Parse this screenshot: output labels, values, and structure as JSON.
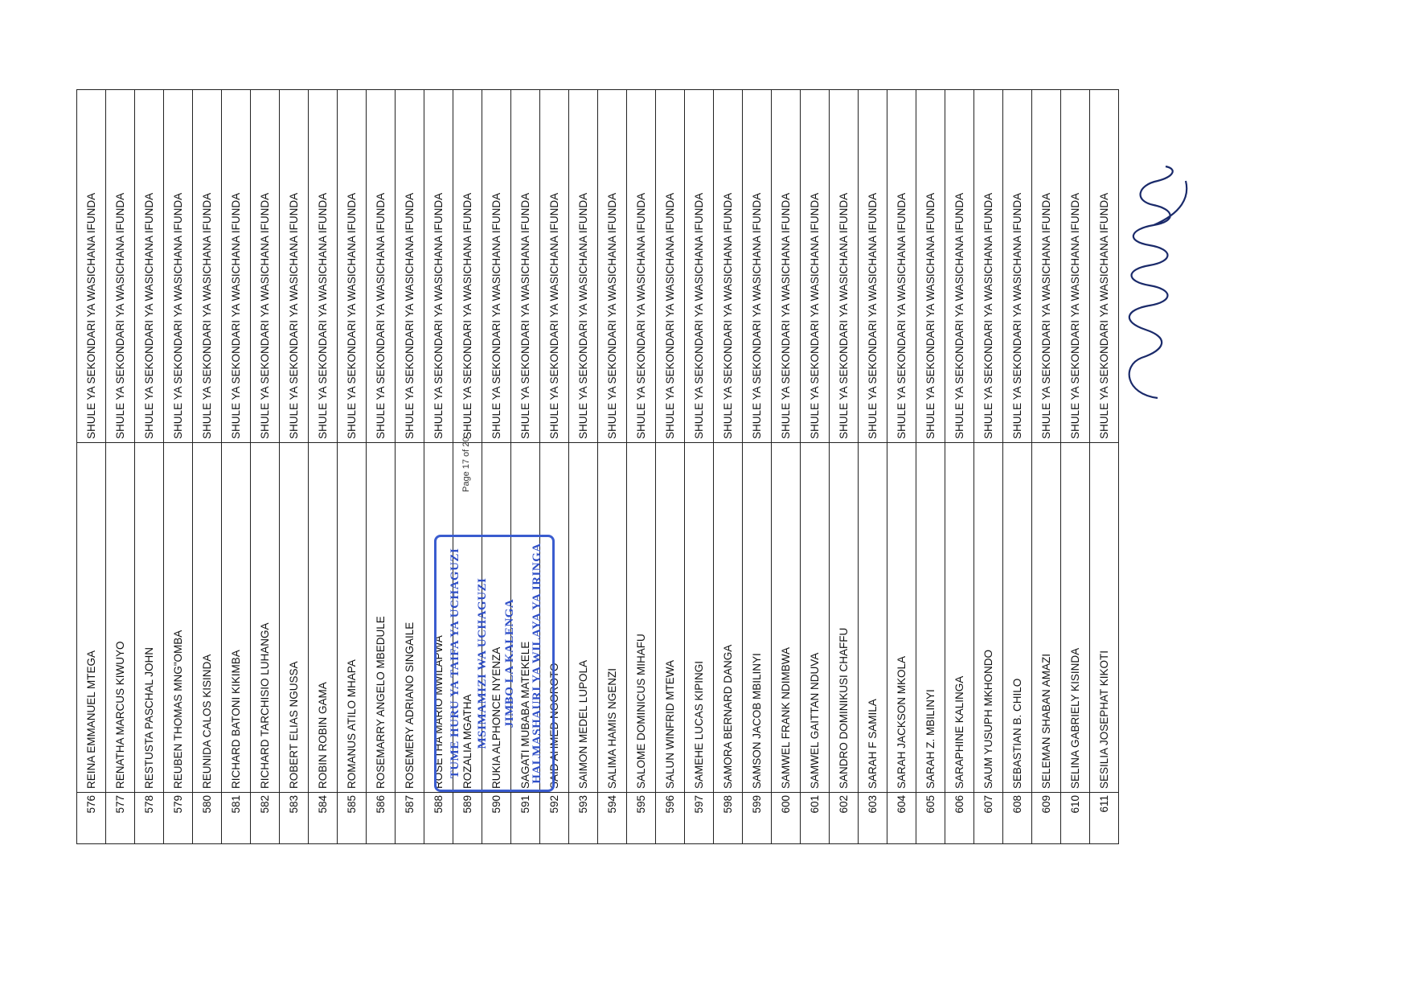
{
  "rows": [
    {
      "no": "576",
      "name": "REINA EMMANUEL MTEGA",
      "school": "SHULE YA SEKONDARI YA WASICHANA IFUNDA"
    },
    {
      "no": "577",
      "name": "RENATHA MARCUS KIWUYO",
      "school": "SHULE YA SEKONDARI YA WASICHANA IFUNDA"
    },
    {
      "no": "578",
      "name": "RESTUSTA PASCHAL JOHN",
      "school": "SHULE YA SEKONDARI YA WASICHANA IFUNDA"
    },
    {
      "no": "579",
      "name": "REUBEN THOMAS MNG\"OMBA",
      "school": "SHULE YA SEKONDARI YA WASICHANA IFUNDA"
    },
    {
      "no": "580",
      "name": "REUNIDA CALOS KISINDA",
      "school": "SHULE YA SEKONDARI YA WASICHANA IFUNDA"
    },
    {
      "no": "581",
      "name": "RICHARD BATONI KIKIMBA",
      "school": "SHULE YA SEKONDARI YA WASICHANA IFUNDA"
    },
    {
      "no": "582",
      "name": "RICHARD TARCHISIO LUHANGA",
      "school": "SHULE YA SEKONDARI YA WASICHANA IFUNDA"
    },
    {
      "no": "583",
      "name": "ROBERT ELIAS NGUSSA",
      "school": "SHULE YA SEKONDARI YA WASICHANA IFUNDA"
    },
    {
      "no": "584",
      "name": "ROBIN ROBIN GAMA",
      "school": "SHULE YA SEKONDARI YA WASICHANA IFUNDA"
    },
    {
      "no": "585",
      "name": "ROMANUS ATILO MHAPA",
      "school": "SHULE YA SEKONDARI YA WASICHANA IFUNDA"
    },
    {
      "no": "586",
      "name": "ROSEMARRY ANGELO MBEDULE",
      "school": "SHULE YA SEKONDARI YA WASICHANA IFUNDA"
    },
    {
      "no": "587",
      "name": "ROSEMERY ADRIANO SINGAILE",
      "school": "SHULE YA SEKONDARI YA WASICHANA IFUNDA"
    },
    {
      "no": "588",
      "name": "ROSETHA MARIO MWILAPWA",
      "school": "SHULE YA SEKONDARI YA WASICHANA IFUNDA"
    },
    {
      "no": "589",
      "name": "ROZALIA MGATHA",
      "school": "SHULE YA SEKONDARI YA WASICHANA IFUNDA"
    },
    {
      "no": "590",
      "name": "RUKIA ALPHONCE NYENZA",
      "school": "SHULE YA SEKONDARI YA WASICHANA IFUNDA"
    },
    {
      "no": "591",
      "name": "SAGATI MUBABA MATEKELE",
      "school": "SHULE YA SEKONDARI YA WASICHANA IFUNDA"
    },
    {
      "no": "592",
      "name": "SAID AHMED NGOROTO",
      "school": "SHULE YA SEKONDARI YA WASICHANA IFUNDA"
    },
    {
      "no": "593",
      "name": "SAIMON MEDEL LUPOLA",
      "school": "SHULE YA SEKONDARI YA WASICHANA IFUNDA"
    },
    {
      "no": "594",
      "name": "SALIMA HAMIS NGENZI",
      "school": "SHULE YA SEKONDARI YA WASICHANA IFUNDA"
    },
    {
      "no": "595",
      "name": "SALOME DOMINICUS MIHAFU",
      "school": "SHULE YA SEKONDARI YA WASICHANA IFUNDA"
    },
    {
      "no": "596",
      "name": "SALUN WINFRID MTEWA",
      "school": "SHULE YA SEKONDARI YA WASICHANA IFUNDA"
    },
    {
      "no": "597",
      "name": "SAMEHE LUCAS KIPINGI",
      "school": "SHULE YA SEKONDARI YA WASICHANA IFUNDA"
    },
    {
      "no": "598",
      "name": "SAMORA BERNARD  DANGA",
      "school": "SHULE YA SEKONDARI YA WASICHANA IFUNDA"
    },
    {
      "no": "599",
      "name": "SAMSON JACOB MBILINYI",
      "school": "SHULE YA SEKONDARI YA WASICHANA IFUNDA"
    },
    {
      "no": "600",
      "name": "SAMWEL FRANK NDIMBWA",
      "school": "SHULE YA SEKONDARI YA WASICHANA IFUNDA"
    },
    {
      "no": "601",
      "name": "SAMWEL GAITTAN NDUVA",
      "school": "SHULE YA SEKONDARI YA WASICHANA IFUNDA"
    },
    {
      "no": "602",
      "name": "SANDRO DOMINIKUSI CHAFFU",
      "school": "SHULE YA SEKONDARI YA WASICHANA IFUNDA"
    },
    {
      "no": "603",
      "name": "SARAH F SAMILA",
      "school": "SHULE YA SEKONDARI YA WASICHANA IFUNDA"
    },
    {
      "no": "604",
      "name": "SARAH JACKSON MKOLA",
      "school": "SHULE YA SEKONDARI YA WASICHANA IFUNDA"
    },
    {
      "no": "605",
      "name": "SARAH Z. MBILINYI",
      "school": "SHULE YA SEKONDARI YA WASICHANA IFUNDA"
    },
    {
      "no": "606",
      "name": "SARAPHINE KALINGA",
      "school": "SHULE YA SEKONDARI YA WASICHANA IFUNDA"
    },
    {
      "no": "607",
      "name": "SAUM YUSUPH MKHONDO",
      "school": "SHULE YA SEKONDARI YA WASICHANA IFUNDA"
    },
    {
      "no": "608",
      "name": "SEBASTIAN B. CHILO",
      "school": "SHULE YA SEKONDARI YA WASICHANA IFUNDA"
    },
    {
      "no": "609",
      "name": "SELEMAN SHABAN AMAZI",
      "school": "SHULE YA SEKONDARI YA WASICHANA IFUNDA"
    },
    {
      "no": "610",
      "name": "SELINA GABRIELY KISINDA",
      "school": "SHULE YA SEKONDARI YA WASICHANA IFUNDA"
    },
    {
      "no": "611",
      "name": "SESILIA  JOSEPHAT KIKOTI",
      "school": "SHULE YA SEKONDARI YA WASICHANA IFUNDA"
    }
  ],
  "page_label": "Page 17 of 20",
  "stamp": {
    "line1": "TUME HURU YA TAIFA YA UCHAGUZI",
    "line2": "MSIMAMIZI WA UCHAGUZI",
    "line3": "JIMBO LA KALENGA",
    "line4": "HALMASHAURI YA WILAYA YA IRINGA",
    "color": "#2f4fc8"
  }
}
